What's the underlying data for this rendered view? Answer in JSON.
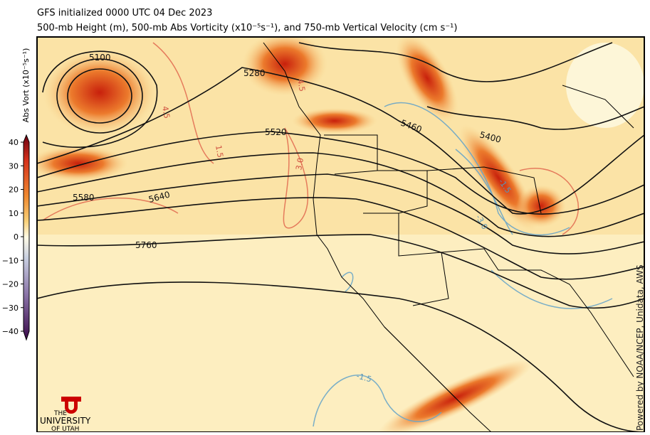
{
  "header": {
    "line1": "GFS initialized 0000 UTC 04 Dec 2023",
    "line2": "500-mb Height (m), 500-mb Abs Vorticity (x10⁻⁵s⁻¹), and 750-mb Vertical Velocity (cm s⁻¹)"
  },
  "colorbar": {
    "label": "Abs Vort (x10⁻⁵s⁻¹)",
    "ticks": [
      40,
      30,
      20,
      10,
      0,
      {
        "value": -10,
        "label": "−10"
      },
      {
        "value": -20,
        "label": "−20"
      },
      {
        "value": -30,
        "label": "−30"
      },
      {
        "value": -40,
        "label": "−40"
      }
    ],
    "range": [
      -40,
      40
    ]
  },
  "height_labels": [
    "5100",
    "5280",
    "5520",
    "5460",
    "5400",
    "5580",
    "5640",
    "5760"
  ],
  "velocity_labels": [
    "4.5",
    "1.5",
    "3.0",
    "-1.5",
    "-3.0",
    "-1.5",
    "4.5"
  ],
  "credit": "Powered by NOAA/NCEP, Unidata, AWS",
  "logo": {
    "the": "THE",
    "university": "UNIVERSITY",
    "of_utah": "OF UTAH"
  }
}
